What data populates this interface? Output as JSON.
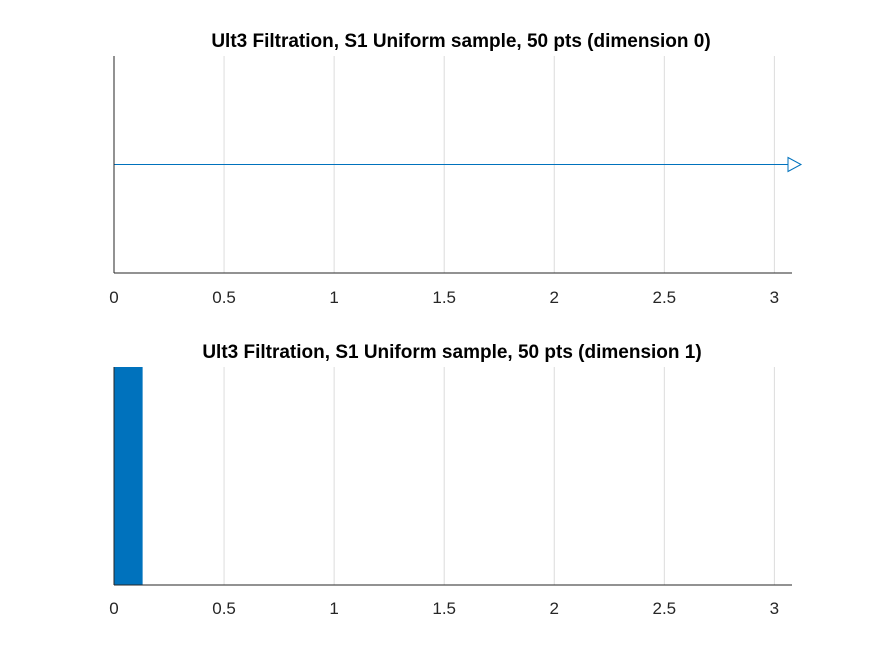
{
  "chart_data": [
    {
      "type": "barcode",
      "title": "Ult3 Filtration, S1 Uniform sample, 50 pts (dimension 0)",
      "xlim": [
        0,
        3.08
      ],
      "x_ticks": [
        "0",
        "0.5",
        "1",
        "1.5",
        "2",
        "2.5",
        "3"
      ],
      "grid": "x",
      "color": "#0072BD",
      "bars": [
        {
          "start": 0,
          "end": "inf"
        }
      ]
    },
    {
      "type": "barcode",
      "title": "Ult3 Filtration, S1 Uniform sample, 50 pts (dimension 1)",
      "xlim": [
        0,
        3.08
      ],
      "x_ticks": [
        "0",
        "0.5",
        "1",
        "1.5",
        "2",
        "2.5",
        "3"
      ],
      "grid": "x",
      "color": "#0072BD",
      "bars": [
        {
          "start": 0,
          "end": 0.13
        }
      ]
    }
  ]
}
